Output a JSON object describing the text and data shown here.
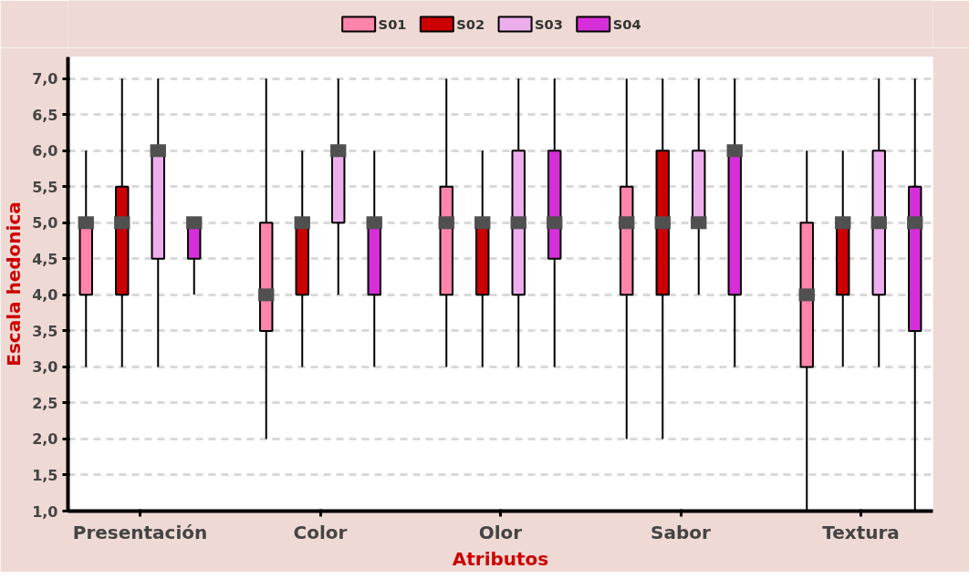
{
  "chart_data": {
    "type": "box",
    "xlabel": "Atributos",
    "ylabel": "Escala hedonica",
    "categories": [
      "Presentación",
      "Color",
      "Olor",
      "Sabor",
      "Textura"
    ],
    "ylim": [
      1,
      7.3
    ],
    "yticks": [
      {
        "value": 1,
        "label": "1,0"
      },
      {
        "value": 1.5,
        "label": "1,5"
      },
      {
        "value": 2,
        "label": "2,0"
      },
      {
        "value": 2.5,
        "label": "2,5"
      },
      {
        "value": 3,
        "label": "3,0"
      },
      {
        "value": 3.5,
        "label": "3,5"
      },
      {
        "value": 4,
        "label": "4,0"
      },
      {
        "value": 4.5,
        "label": "4,5"
      },
      {
        "value": 5,
        "label": "5,0"
      },
      {
        "value": 5.5,
        "label": "5,5"
      },
      {
        "value": 6,
        "label": "6,0"
      },
      {
        "value": 6.5,
        "label": "6,5"
      },
      {
        "value": 7,
        "label": "7,0"
      }
    ],
    "grid": "y",
    "legend": "top",
    "series": [
      {
        "name": "S01",
        "color": "#ff85aa",
        "boxes": [
          {
            "low": 3,
            "q1": 4,
            "median": 5,
            "q3": 5,
            "high": 6
          },
          {
            "low": 2,
            "q1": 3.5,
            "median": 4,
            "q3": 5,
            "high": 7
          },
          {
            "low": 3,
            "q1": 4,
            "median": 5,
            "q3": 5.5,
            "high": 7
          },
          {
            "low": 2,
            "q1": 4,
            "median": 5,
            "q3": 5.5,
            "high": 7
          },
          {
            "low": 1,
            "q1": 3,
            "median": 4,
            "q3": 5,
            "high": 6
          }
        ]
      },
      {
        "name": "S02",
        "color": "#cc0000",
        "boxes": [
          {
            "low": 3,
            "q1": 4,
            "median": 5,
            "q3": 5.5,
            "high": 7
          },
          {
            "low": 3,
            "q1": 4,
            "median": 5,
            "q3": 5,
            "high": 6
          },
          {
            "low": 3,
            "q1": 4,
            "median": 5,
            "q3": 5,
            "high": 6
          },
          {
            "low": 2,
            "q1": 4,
            "median": 5,
            "q3": 6,
            "high": 7
          },
          {
            "low": 3,
            "q1": 4,
            "median": 5,
            "q3": 5,
            "high": 6
          }
        ]
      },
      {
        "name": "S03",
        "color": "#edaeed",
        "boxes": [
          {
            "low": 3,
            "q1": 4.5,
            "median": 6,
            "q3": 6,
            "high": 7
          },
          {
            "low": 4,
            "q1": 5,
            "median": 6,
            "q3": 6,
            "high": 7
          },
          {
            "low": 3,
            "q1": 4,
            "median": 5,
            "q3": 6,
            "high": 7
          },
          {
            "low": 4,
            "q1": 5,
            "median": 5,
            "q3": 6,
            "high": 7
          },
          {
            "low": 3,
            "q1": 4,
            "median": 5,
            "q3": 6,
            "high": 7
          }
        ]
      },
      {
        "name": "S04",
        "color": "#d62ed9",
        "boxes": [
          {
            "low": 4,
            "q1": 4.5,
            "median": 5,
            "q3": 5,
            "high": 5
          },
          {
            "low": 3,
            "q1": 4,
            "median": 5,
            "q3": 5,
            "high": 6
          },
          {
            "low": 3,
            "q1": 4.5,
            "median": 5,
            "q3": 6,
            "high": 7
          },
          {
            "low": 3,
            "q1": 4,
            "median": 6,
            "q3": 6,
            "high": 7
          },
          {
            "low": 1,
            "q1": 3.5,
            "median": 5,
            "q3": 5.5,
            "high": 7
          }
        ]
      }
    ]
  }
}
